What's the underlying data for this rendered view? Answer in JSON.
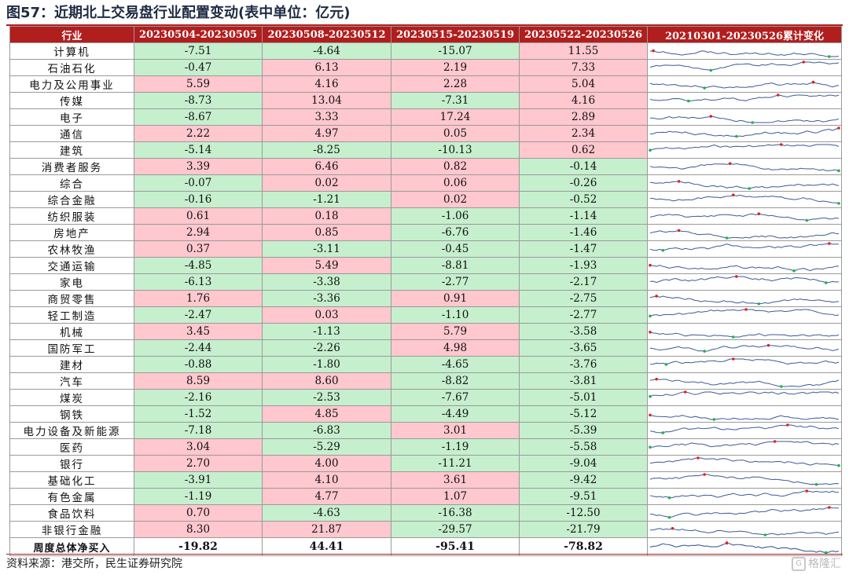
{
  "figure": {
    "title": "图57：近期北上交易盘行业配置变动(表中单位：亿元)",
    "source": "资料来源：港交所，民生证券研究院",
    "watermark": "格隆汇"
  },
  "colors": {
    "header_bg": "#b11e1e",
    "positive_bg": "#ffc7ce",
    "negative_bg": "#c6efce",
    "spark_line": "#3a5a9a",
    "spark_high": "#e02020",
    "spark_low": "#22b14c"
  },
  "table": {
    "headers": [
      "行业",
      "20230504-20230505",
      "20230508-20230512",
      "20230515-20230519",
      "20230522-20230526",
      "20210301-20230526累计变化"
    ],
    "rows": [
      {
        "name": "计算机",
        "values": [
          "-7.51",
          "-4.64",
          "-15.07",
          "11.55"
        ]
      },
      {
        "name": "石油石化",
        "values": [
          "-0.47",
          "6.13",
          "2.19",
          "7.33"
        ]
      },
      {
        "name": "电力及公用事业",
        "values": [
          "5.59",
          "4.16",
          "2.28",
          "5.04"
        ]
      },
      {
        "name": "传媒",
        "values": [
          "-8.73",
          "13.04",
          "-7.31",
          "4.16"
        ]
      },
      {
        "name": "电子",
        "values": [
          "-8.67",
          "3.33",
          "17.24",
          "2.89"
        ]
      },
      {
        "name": "通信",
        "values": [
          "2.22",
          "4.97",
          "0.05",
          "2.34"
        ]
      },
      {
        "name": "建筑",
        "values": [
          "-5.14",
          "-8.25",
          "-10.13",
          "0.62"
        ]
      },
      {
        "name": "消费者服务",
        "values": [
          "3.39",
          "6.46",
          "0.82",
          "-0.14"
        ]
      },
      {
        "name": "综合",
        "values": [
          "-0.07",
          "0.02",
          "0.06",
          "-0.26"
        ]
      },
      {
        "name": "综合金融",
        "values": [
          "-0.16",
          "-1.21",
          "0.02",
          "-0.52"
        ]
      },
      {
        "name": "纺织服装",
        "values": [
          "0.61",
          "0.18",
          "-1.06",
          "-1.14"
        ]
      },
      {
        "name": "房地产",
        "values": [
          "2.94",
          "0.85",
          "-6.76",
          "-1.46"
        ]
      },
      {
        "name": "农林牧渔",
        "values": [
          "0.37",
          "-3.11",
          "-0.45",
          "-1.47"
        ]
      },
      {
        "name": "交通运输",
        "values": [
          "-4.85",
          "5.49",
          "-8.81",
          "-1.93"
        ]
      },
      {
        "name": "家电",
        "values": [
          "-6.13",
          "-3.38",
          "-2.77",
          "-2.17"
        ]
      },
      {
        "name": "商贸零售",
        "values": [
          "1.76",
          "-3.36",
          "0.91",
          "-2.75"
        ]
      },
      {
        "name": "轻工制造",
        "values": [
          "-2.47",
          "0.03",
          "-1.10",
          "-2.77"
        ]
      },
      {
        "name": "机械",
        "values": [
          "3.45",
          "-1.13",
          "5.79",
          "-3.58"
        ]
      },
      {
        "name": "国防军工",
        "values": [
          "-2.44",
          "-2.26",
          "4.98",
          "-3.65"
        ]
      },
      {
        "name": "建材",
        "values": [
          "-0.88",
          "-1.80",
          "-4.65",
          "-3.76"
        ]
      },
      {
        "name": "汽车",
        "values": [
          "8.59",
          "8.60",
          "-8.82",
          "-3.81"
        ]
      },
      {
        "name": "煤炭",
        "values": [
          "-2.16",
          "-2.53",
          "-7.67",
          "-5.01"
        ]
      },
      {
        "name": "钢铁",
        "values": [
          "-1.52",
          "4.85",
          "-4.49",
          "-5.12"
        ]
      },
      {
        "name": "电力设备及新能源",
        "values": [
          "-7.18",
          "-6.83",
          "3.01",
          "-5.39"
        ]
      },
      {
        "name": "医药",
        "values": [
          "3.04",
          "-5.29",
          "-1.19",
          "-5.58"
        ]
      },
      {
        "name": "银行",
        "values": [
          "2.70",
          "4.00",
          "-11.21",
          "-9.04"
        ]
      },
      {
        "name": "基础化工",
        "values": [
          "-3.91",
          "4.10",
          "3.61",
          "-9.42"
        ]
      },
      {
        "name": "有色金属",
        "values": [
          "-1.19",
          "4.77",
          "1.07",
          "-9.51"
        ]
      },
      {
        "name": "食品饮料",
        "values": [
          "0.70",
          "-4.63",
          "-16.38",
          "-12.50"
        ]
      },
      {
        "name": "非银行金融",
        "values": [
          "8.30",
          "21.87",
          "-29.57",
          "-21.79"
        ]
      }
    ],
    "total": {
      "name": "周度总体净买入",
      "values": [
        "-19.82",
        "44.41",
        "-95.41",
        "-78.82"
      ]
    }
  }
}
